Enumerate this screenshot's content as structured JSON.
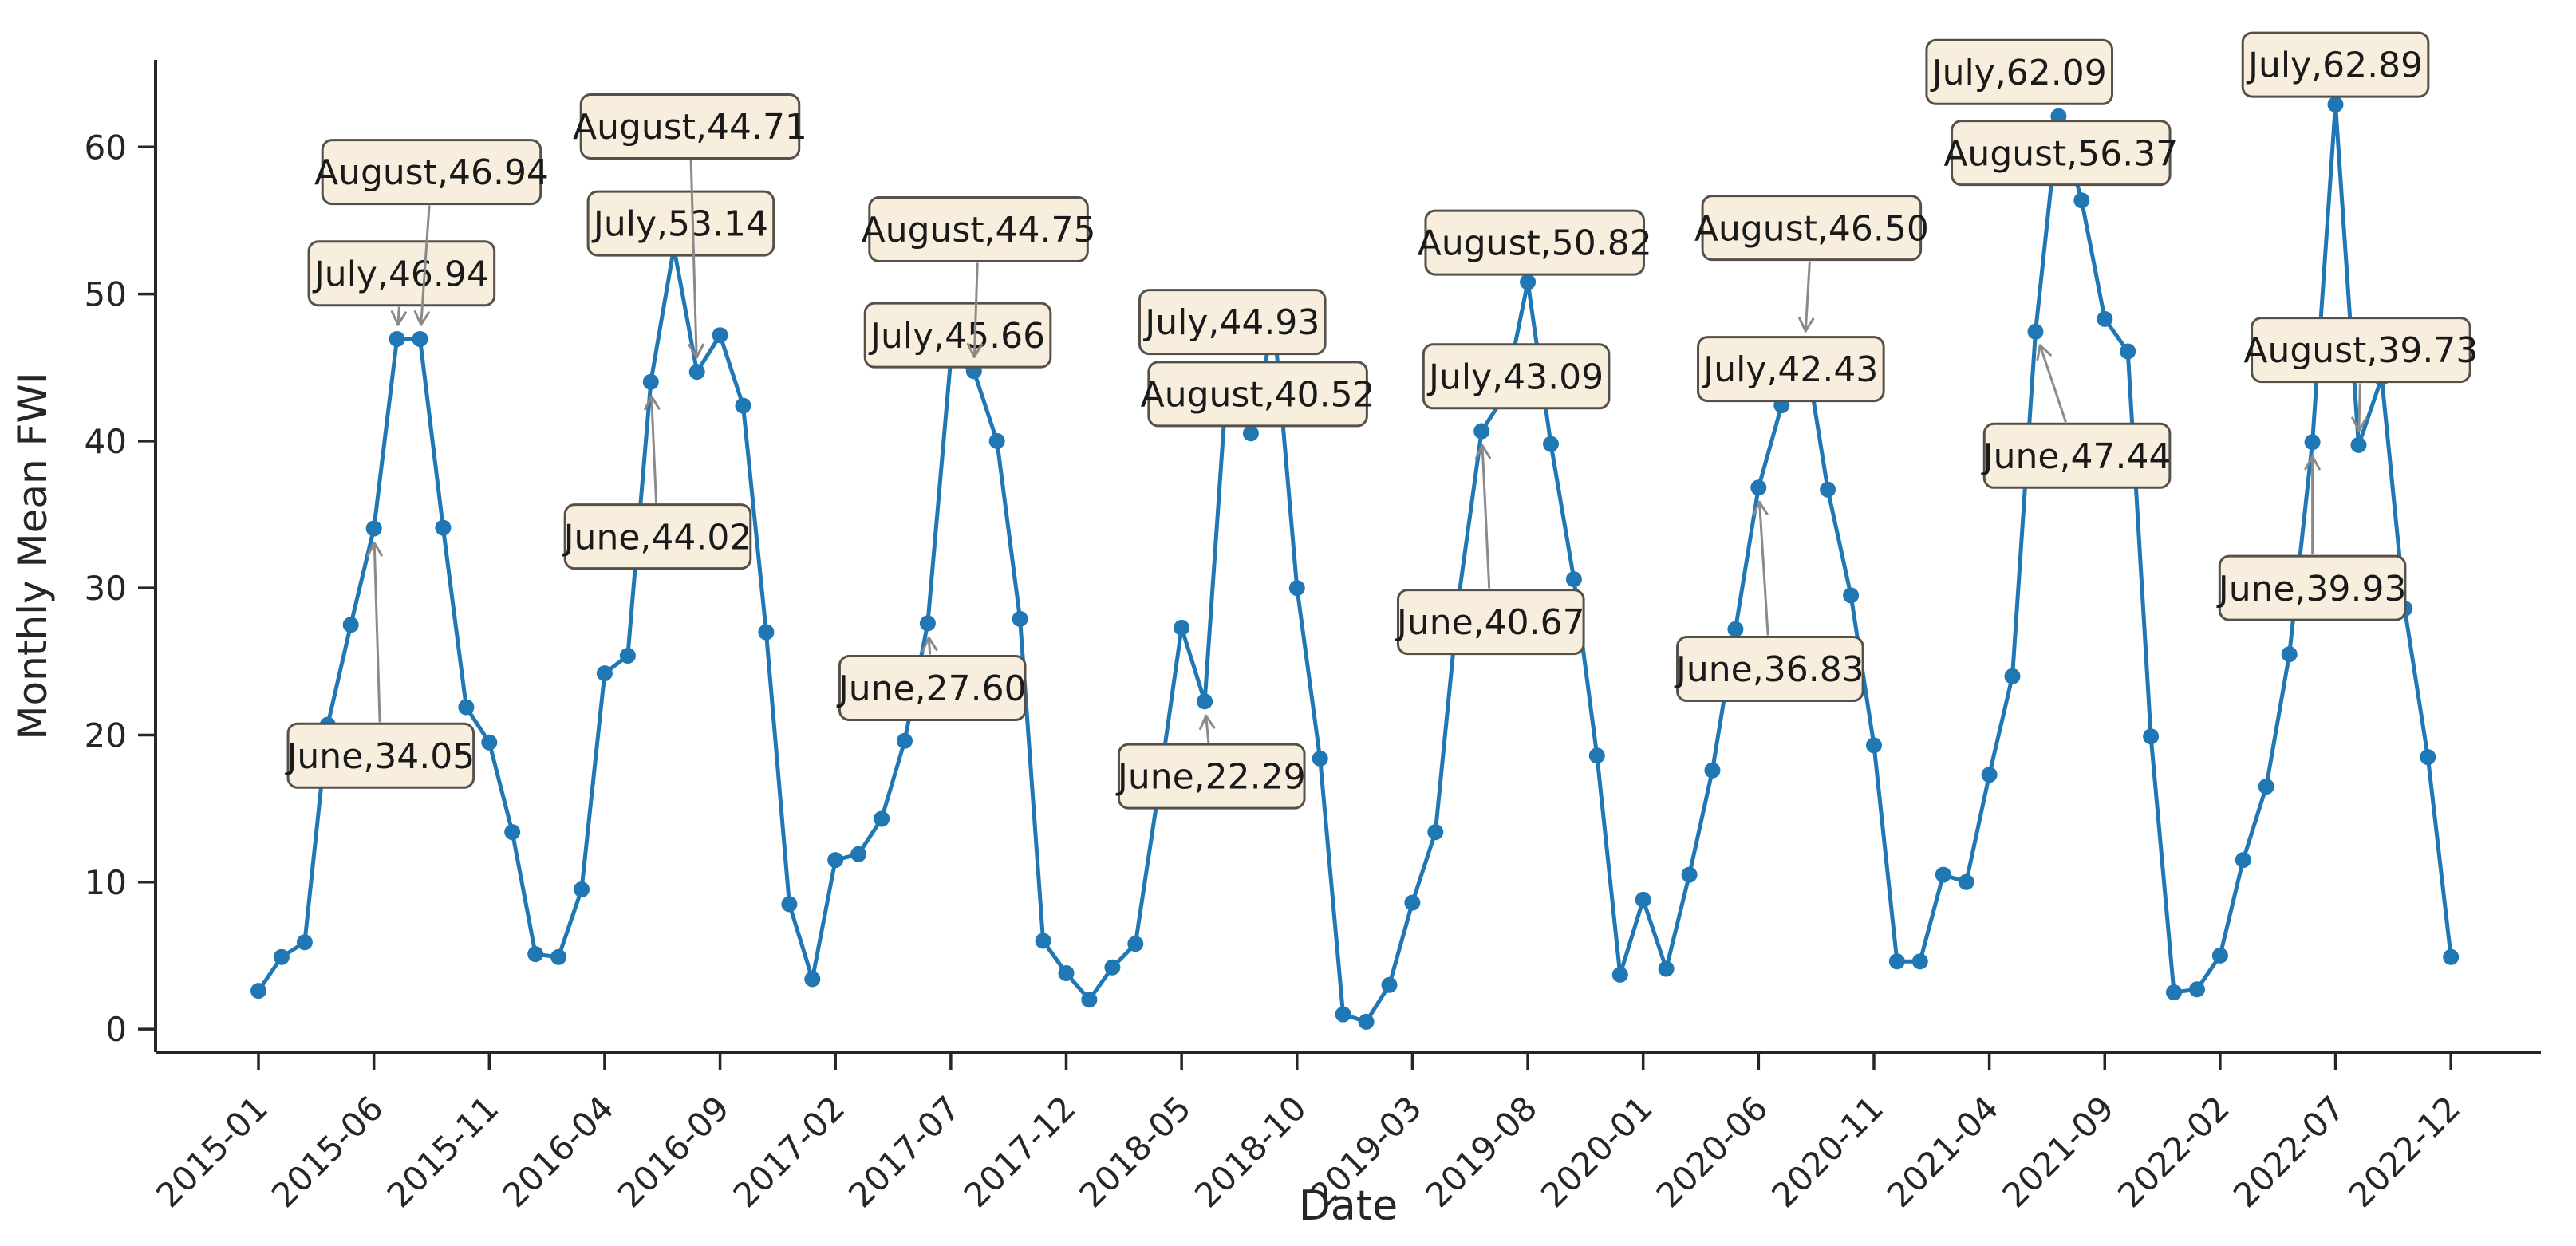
{
  "chart_data": {
    "type": "line",
    "title": "",
    "xlabel": "Date",
    "ylabel": "Monthly Mean FWI",
    "legend": "none",
    "grid": false,
    "line_color": "#1f77b4",
    "marker": "circle",
    "axis_color": "#262626",
    "annotation_box_fill": "#f7eedd",
    "annotation_box_border": "#55504a",
    "annotation_text_color": "#1a1a1a",
    "annotation_arrow_color": "#8a8a8a",
    "ylim": [
      -1.57,
      65.93
    ],
    "xlim_months": [
      -4.46,
      98.9
    ],
    "y_ticks": [
      "0",
      "10",
      "20",
      "30",
      "40",
      "50",
      "60"
    ],
    "y_tick_values": [
      0,
      10,
      20,
      30,
      40,
      50,
      60
    ],
    "x_tick_labels": [
      "2015-01",
      "2015-06",
      "2015-11",
      "2016-04",
      "2016-09",
      "2017-02",
      "2017-07",
      "2017-12",
      "2018-05",
      "2018-10",
      "2019-03",
      "2019-08",
      "2020-01",
      "2020-06",
      "2020-11",
      "2021-04",
      "2021-09",
      "2022-02",
      "2022-07",
      "2022-12"
    ],
    "x_tick_month_indices": [
      0,
      5,
      10,
      15,
      20,
      25,
      30,
      35,
      40,
      45,
      50,
      55,
      60,
      65,
      70,
      75,
      80,
      85,
      90,
      95
    ],
    "months": [
      "2015-01",
      "2015-02",
      "2015-03",
      "2015-04",
      "2015-05",
      "2015-06",
      "2015-07",
      "2015-08",
      "2015-09",
      "2015-10",
      "2015-11",
      "2015-12",
      "2016-01",
      "2016-02",
      "2016-03",
      "2016-04",
      "2016-05",
      "2016-06",
      "2016-07",
      "2016-08",
      "2016-09",
      "2016-10",
      "2016-11",
      "2016-12",
      "2017-01",
      "2017-02",
      "2017-03",
      "2017-04",
      "2017-05",
      "2017-06",
      "2017-07",
      "2017-08",
      "2017-09",
      "2017-10",
      "2017-11",
      "2017-12",
      "2018-01",
      "2018-02",
      "2018-03",
      "2018-04",
      "2018-05",
      "2018-06",
      "2018-07",
      "2018-08",
      "2018-09",
      "2018-10",
      "2018-11",
      "2018-12",
      "2019-01",
      "2019-02",
      "2019-03",
      "2019-04",
      "2019-05",
      "2019-06",
      "2019-07",
      "2019-08",
      "2019-09",
      "2019-10",
      "2019-11",
      "2019-12",
      "2020-01",
      "2020-02",
      "2020-03",
      "2020-04",
      "2020-05",
      "2020-06",
      "2020-07",
      "2020-08",
      "2020-09",
      "2020-10",
      "2020-11",
      "2020-12",
      "2021-01",
      "2021-02",
      "2021-03",
      "2021-04",
      "2021-05",
      "2021-06",
      "2021-07",
      "2021-08",
      "2021-09",
      "2021-10",
      "2021-11",
      "2021-12",
      "2022-01",
      "2022-02",
      "2022-03",
      "2022-04",
      "2022-05",
      "2022-06",
      "2022-07",
      "2022-08",
      "2022-09",
      "2022-10",
      "2022-11",
      "2022-12"
    ],
    "series": [
      {
        "name": "Monthly Mean FWI",
        "values": [
          2.6,
          4.9,
          5.9,
          20.7,
          27.5,
          34.05,
          46.94,
          46.94,
          34.1,
          21.9,
          19.5,
          13.4,
          5.1,
          4.9,
          9.5,
          24.2,
          25.4,
          44.02,
          53.14,
          44.71,
          47.2,
          42.4,
          27.0,
          8.5,
          3.4,
          11.5,
          11.9,
          14.3,
          19.6,
          27.6,
          45.66,
          44.75,
          40.0,
          27.9,
          6.0,
          3.8,
          2.0,
          4.2,
          5.8,
          16.2,
          27.3,
          22.29,
          44.93,
          40.52,
          48.2,
          30.0,
          18.4,
          1.0,
          0.5,
          3.0,
          8.6,
          13.4,
          29.3,
          40.67,
          43.09,
          50.82,
          39.8,
          30.6,
          18.6,
          3.7,
          8.8,
          4.1,
          10.5,
          17.6,
          27.2,
          36.83,
          42.43,
          46.5,
          36.7,
          29.5,
          19.3,
          4.6,
          4.6,
          10.5,
          10.0,
          17.3,
          24.0,
          47.44,
          62.09,
          56.37,
          48.3,
          46.1,
          19.9,
          2.5,
          2.7,
          5.0,
          11.5,
          16.5,
          25.5,
          39.93,
          62.89,
          39.73,
          44.3,
          28.6,
          18.5,
          4.9
        ]
      }
    ],
    "annotations": [
      {
        "label": "June,34.05",
        "target_month": 5,
        "target_value": 34.05,
        "box_month": 5.3,
        "box_value": 18.6
      },
      {
        "label": "July,46.94",
        "target_month": 6,
        "target_value": 46.94,
        "box_month": 6.2,
        "box_value": 51.4
      },
      {
        "label": "August,46.94",
        "target_month": 7,
        "target_value": 46.94,
        "box_month": 7.5,
        "box_value": 58.3
      },
      {
        "label": "June,44.02",
        "target_month": 17,
        "target_value": 44.02,
        "box_month": 17.3,
        "box_value": 33.5
      },
      {
        "label": "July,53.14",
        "target_month": 18,
        "target_value": 53.14,
        "box_month": 18.3,
        "box_value": 54.8
      },
      {
        "label": "August,44.71",
        "target_month": 19,
        "target_value": 44.71,
        "box_month": 18.7,
        "box_value": 61.4
      },
      {
        "label": "June,27.60",
        "target_month": 29,
        "target_value": 27.6,
        "box_month": 29.2,
        "box_value": 23.2
      },
      {
        "label": "July,45.66",
        "target_month": 30,
        "target_value": 45.66,
        "box_month": 30.3,
        "box_value": 47.2
      },
      {
        "label": "August,44.75",
        "target_month": 31,
        "target_value": 44.75,
        "box_month": 31.2,
        "box_value": 54.4
      },
      {
        "label": "June,22.29",
        "target_month": 41,
        "target_value": 22.29,
        "box_month": 41.3,
        "box_value": 17.2
      },
      {
        "label": "July,44.93",
        "target_month": 42,
        "target_value": 44.93,
        "box_month": 42.2,
        "box_value": 48.1
      },
      {
        "label": "August,40.52",
        "target_month": 43,
        "target_value": 40.52,
        "box_month": 43.3,
        "box_value": 43.2
      },
      {
        "label": "June,40.67",
        "target_month": 53,
        "target_value": 40.67,
        "box_month": 53.4,
        "box_value": 27.7
      },
      {
        "label": "July,43.09",
        "target_month": 54,
        "target_value": 43.09,
        "box_month": 54.5,
        "box_value": 44.4
      },
      {
        "label": "August,50.82",
        "target_month": 55,
        "target_value": 50.82,
        "box_month": 55.3,
        "box_value": 53.5
      },
      {
        "label": "June,36.83",
        "target_month": 65,
        "target_value": 36.83,
        "box_month": 65.5,
        "box_value": 24.5
      },
      {
        "label": "July,42.43",
        "target_month": 66,
        "target_value": 42.43,
        "box_month": 66.4,
        "box_value": 44.9
      },
      {
        "label": "August,46.50",
        "target_month": 67,
        "target_value": 46.5,
        "box_month": 67.3,
        "box_value": 54.5
      },
      {
        "label": "June,47.44",
        "target_month": 77,
        "target_value": 47.44,
        "box_month": 78.8,
        "box_value": 39.0
      },
      {
        "label": "July,62.09",
        "target_month": 78,
        "target_value": 62.09,
        "box_month": 76.3,
        "box_value": 65.1
      },
      {
        "label": "August,56.37",
        "target_month": 79,
        "target_value": 56.37,
        "box_month": 78.1,
        "box_value": 59.6
      },
      {
        "label": "June,39.93",
        "target_month": 89,
        "target_value": 39.93,
        "box_month": 89.0,
        "box_value": 30.0
      },
      {
        "label": "July,62.89",
        "target_month": 90,
        "target_value": 62.89,
        "box_month": 90.0,
        "box_value": 65.6
      },
      {
        "label": "August,39.73",
        "target_month": 91,
        "target_value": 39.73,
        "box_month": 91.1,
        "box_value": 46.2
      }
    ]
  }
}
